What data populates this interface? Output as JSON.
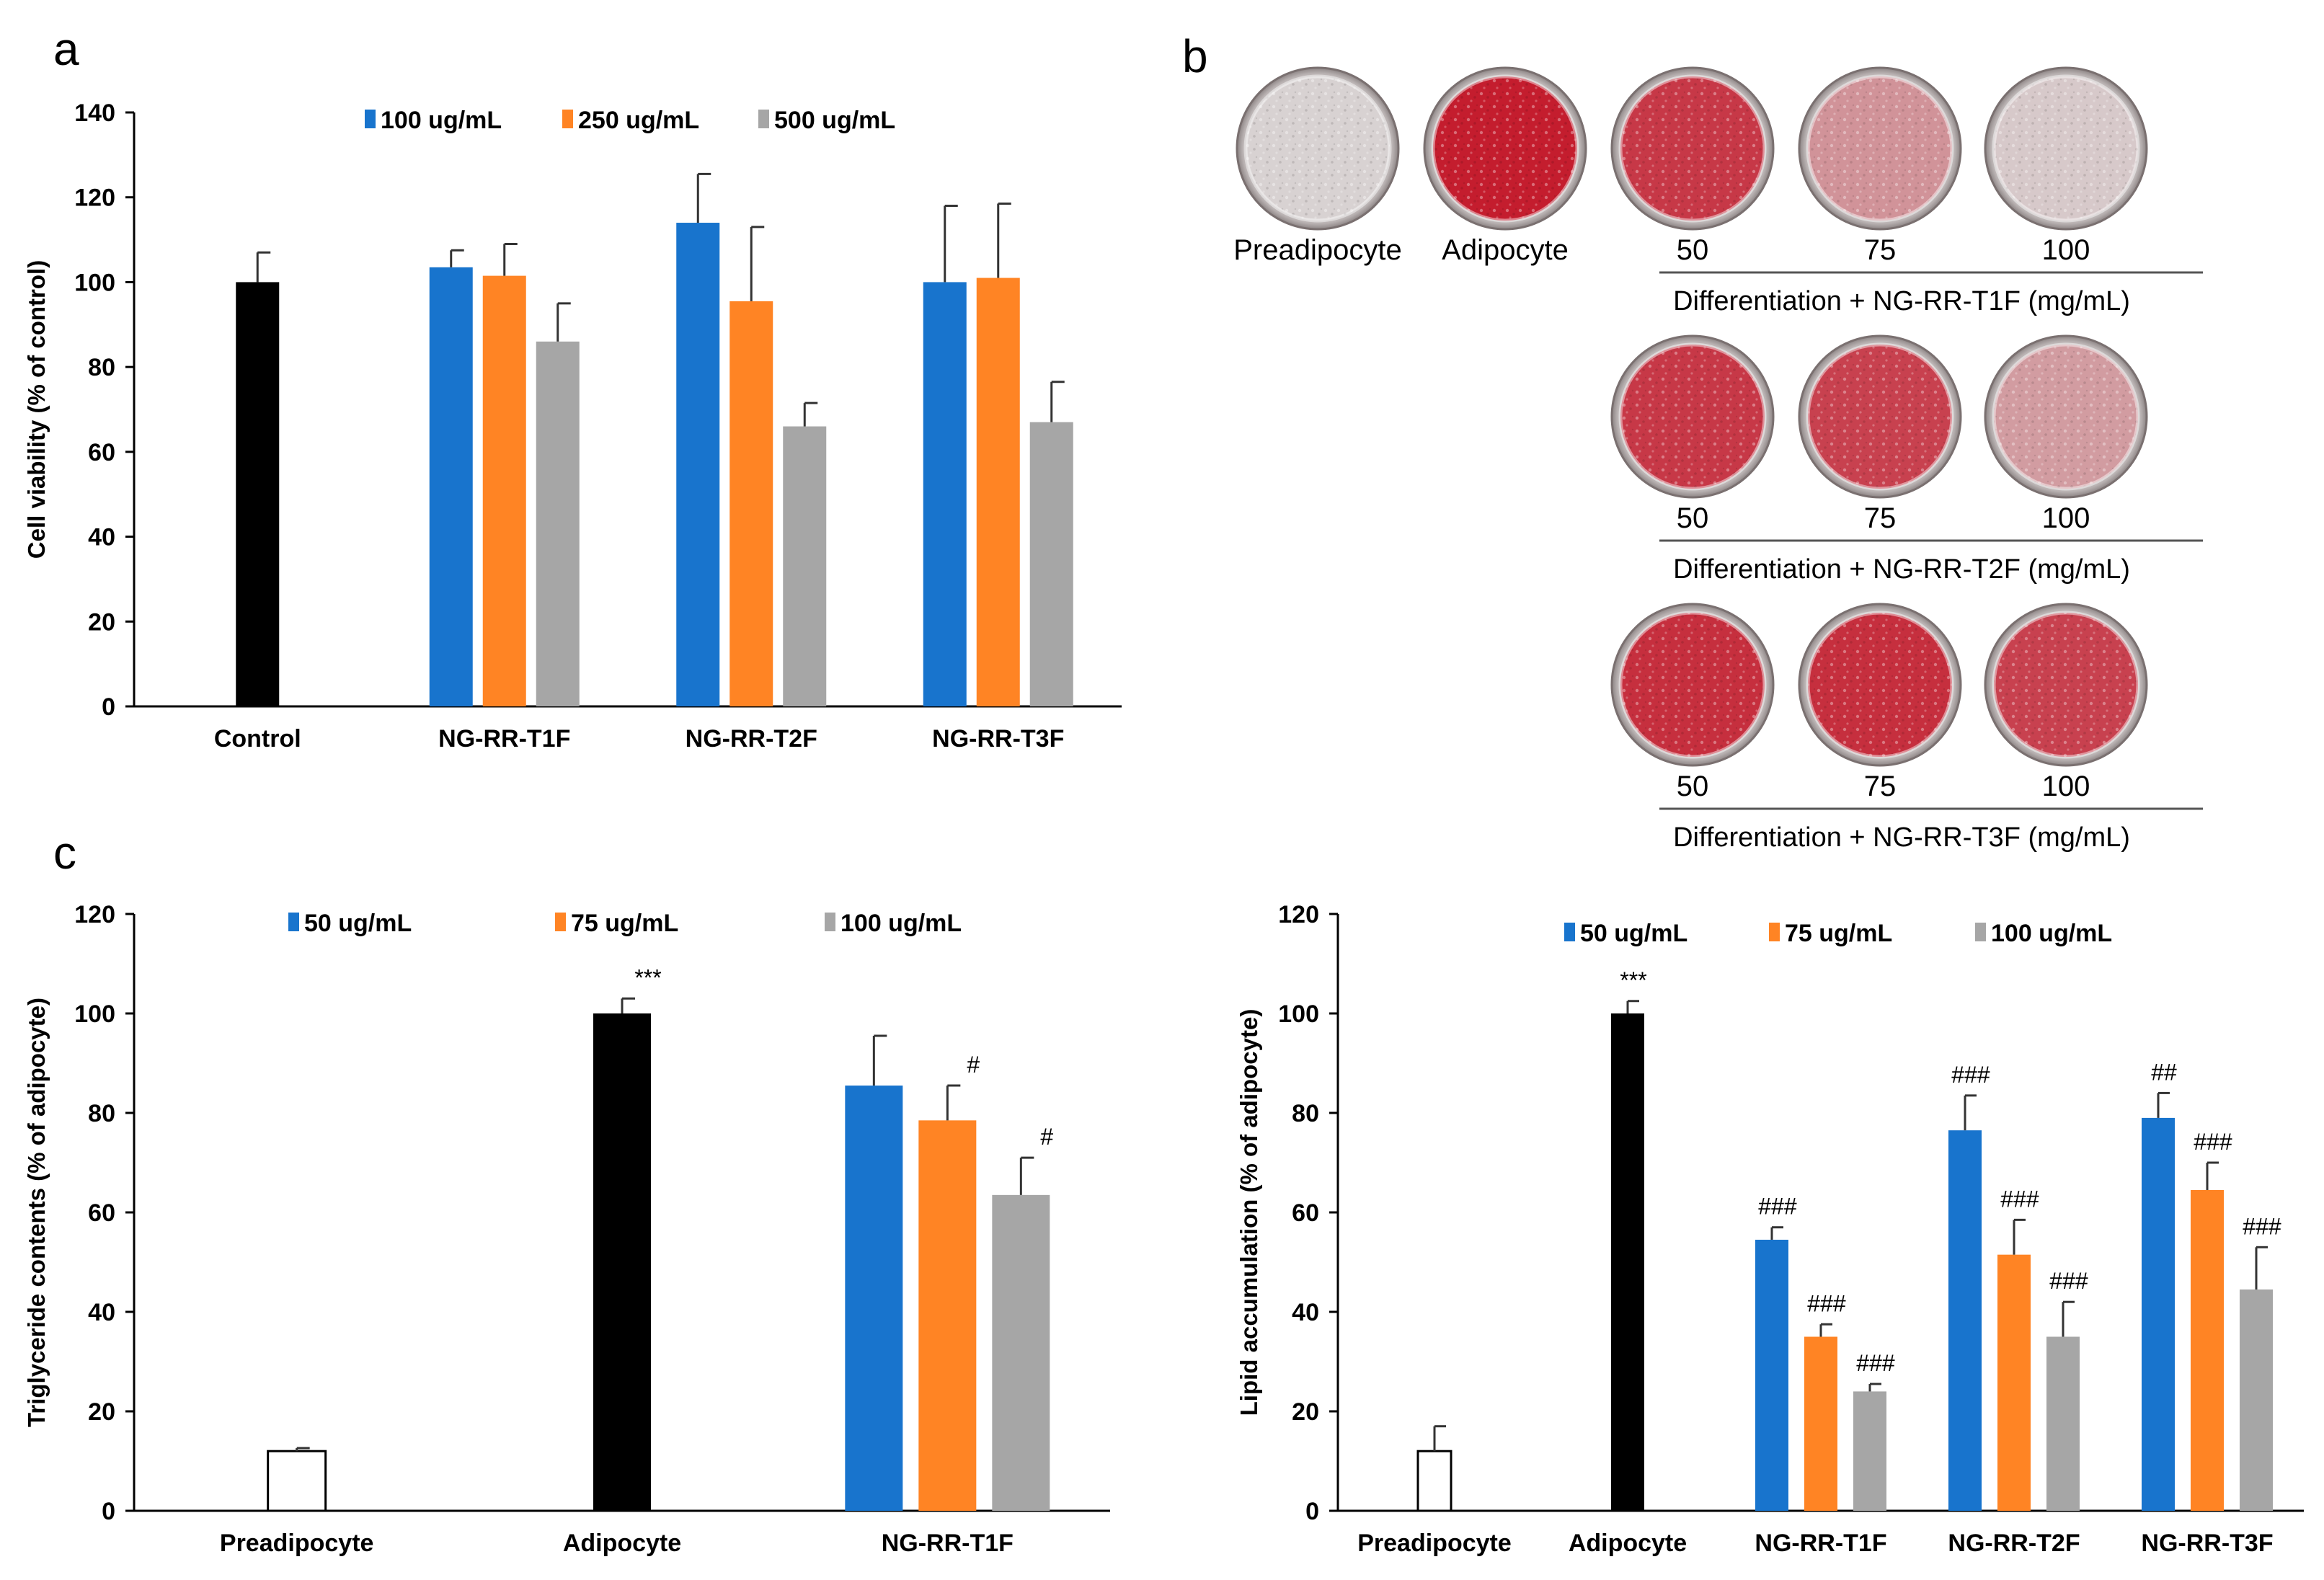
{
  "panels": {
    "a": "a",
    "b": "b",
    "c": "c"
  },
  "colors": {
    "blue": "#1874cd",
    "orange": "#ff8424",
    "gray": "#a6a6a6",
    "black": "#000000",
    "white": "#ffffff",
    "red": "#c41d2e",
    "pale": "#d8d2d2"
  },
  "chart_data": [
    {
      "id": "a",
      "type": "bar",
      "ylabel": "Cell viability  (% of control)",
      "ylim": [
        0,
        140
      ],
      "yticks": [
        0,
        20,
        40,
        60,
        80,
        100,
        120,
        140
      ],
      "categories": [
        "Control",
        "NG-RR-T1F",
        "NG-RR-T2F",
        "NG-RR-T3F"
      ],
      "legend": [
        "100 ug/mL",
        "250 ug/mL",
        "500 ug/mL"
      ],
      "groups": [
        {
          "category": "Control",
          "bars": [
            {
              "value": 100,
              "error": 7,
              "color": "black"
            }
          ]
        },
        {
          "category": "NG-RR-T1F",
          "bars": [
            {
              "series": "100 ug/mL",
              "value": 103.5,
              "error": 4,
              "color": "blue"
            },
            {
              "series": "250 ug/mL",
              "value": 101.5,
              "error": 7.5,
              "color": "orange"
            },
            {
              "series": "500 ug/mL",
              "value": 86,
              "error": 9,
              "color": "gray"
            }
          ]
        },
        {
          "category": "NG-RR-T2F",
          "bars": [
            {
              "series": "100 ug/mL",
              "value": 114,
              "error": 11.5,
              "color": "blue"
            },
            {
              "series": "250 ug/mL",
              "value": 95.5,
              "error": 17.5,
              "color": "orange"
            },
            {
              "series": "500 ug/mL",
              "value": 66,
              "error": 5.5,
              "color": "gray"
            }
          ]
        },
        {
          "category": "NG-RR-T3F",
          "bars": [
            {
              "series": "100 ug/mL",
              "value": 100,
              "error": 18,
              "color": "blue"
            },
            {
              "series": "250 ug/mL",
              "value": 101,
              "error": 17.5,
              "color": "orange"
            },
            {
              "series": "500 ug/mL",
              "value": 67,
              "error": 9.5,
              "color": "gray"
            }
          ]
        }
      ]
    },
    {
      "id": "c-left",
      "type": "bar",
      "ylabel": "Triglyceride contents (% of adipocyte)",
      "ylim": [
        0,
        120
      ],
      "yticks": [
        0,
        20,
        40,
        60,
        80,
        100,
        120
      ],
      "categories": [
        "Preadipocyte",
        "Adipocyte",
        "NG-RR-T1F"
      ],
      "legend": [
        "50 ug/mL",
        "75 ug/mL",
        "100 ug/mL"
      ],
      "groups": [
        {
          "category": "Preadipocyte",
          "bars": [
            {
              "value": 12,
              "error": 0.6,
              "color": "white"
            }
          ]
        },
        {
          "category": "Adipocyte",
          "bars": [
            {
              "value": 100,
              "error": 3,
              "color": "black",
              "sig": "***"
            }
          ]
        },
        {
          "category": "NG-RR-T1F",
          "bars": [
            {
              "series": "50 ug/mL",
              "value": 85.5,
              "error": 10,
              "color": "blue"
            },
            {
              "series": "75 ug/mL",
              "value": 78.5,
              "error": 7,
              "color": "orange",
              "sig": "#"
            },
            {
              "series": "100 ug/mL",
              "value": 63.5,
              "error": 7.5,
              "color": "gray",
              "sig": "#"
            }
          ]
        }
      ]
    },
    {
      "id": "c-right",
      "type": "bar",
      "ylabel": "Lipid accumulation  (% of adipocyte)",
      "ylim": [
        0,
        120
      ],
      "yticks": [
        0,
        20,
        40,
        60,
        80,
        100,
        120
      ],
      "categories": [
        "Preadipocyte",
        "Adipocyte",
        "NG-RR-T1F",
        "NG-RR-T2F",
        "NG-RR-T3F"
      ],
      "legend": [
        "50 ug/mL",
        "75 ug/mL",
        "100 ug/mL"
      ],
      "groups": [
        {
          "category": "Preadipocyte",
          "bars": [
            {
              "value": 12,
              "error": 5,
              "color": "white"
            }
          ]
        },
        {
          "category": "Adipocyte",
          "bars": [
            {
              "value": 100,
              "error": 2.5,
              "color": "black",
              "sig": "***"
            }
          ]
        },
        {
          "category": "NG-RR-T1F",
          "bars": [
            {
              "series": "50 ug/mL",
              "value": 54.5,
              "error": 2.5,
              "color": "blue",
              "sig": "###"
            },
            {
              "series": "75 ug/mL",
              "value": 35,
              "error": 2.5,
              "color": "orange",
              "sig": "###"
            },
            {
              "series": "100 ug/mL",
              "value": 24,
              "error": 1.5,
              "color": "gray",
              "sig": "###"
            }
          ]
        },
        {
          "category": "NG-RR-T2F",
          "bars": [
            {
              "series": "50 ug/mL",
              "value": 76.5,
              "error": 7,
              "color": "blue",
              "sig": "###"
            },
            {
              "series": "75 ug/mL",
              "value": 51.5,
              "error": 7,
              "color": "orange",
              "sig": "###"
            },
            {
              "series": "100 ug/mL",
              "value": 35,
              "error": 7,
              "color": "gray",
              "sig": "###"
            }
          ]
        },
        {
          "category": "NG-RR-T3F",
          "bars": [
            {
              "series": "50 ug/mL",
              "value": 79,
              "error": 5,
              "color": "blue",
              "sig": "##"
            },
            {
              "series": "75 ug/mL",
              "value": 64.5,
              "error": 5.5,
              "color": "orange",
              "sig": "###"
            },
            {
              "series": "100 ug/mL",
              "value": 44.5,
              "error": 8.5,
              "color": "gray",
              "sig": "###"
            }
          ]
        }
      ]
    }
  ],
  "panel_b": {
    "control_labels": [
      "Preadipocyte",
      "Adipocyte"
    ],
    "rows": [
      {
        "doses": [
          "50",
          "75",
          "100"
        ],
        "caption": "Differentiation + NG-RR-T1F  (mg/mL)",
        "stain": [
          0.85,
          0.35,
          0.05
        ]
      },
      {
        "doses": [
          "50",
          "75",
          "100"
        ],
        "caption": "Differentiation + NG-RR-T2F  (mg/mL)",
        "stain": [
          0.85,
          0.8,
          0.3
        ]
      },
      {
        "doses": [
          "50",
          "75",
          "100"
        ],
        "caption": "Differentiation + NG-RR-T3F  (mg/mL)",
        "stain": [
          0.9,
          0.9,
          0.8
        ]
      }
    ],
    "control_stain": [
      0.0,
      1.0
    ]
  }
}
